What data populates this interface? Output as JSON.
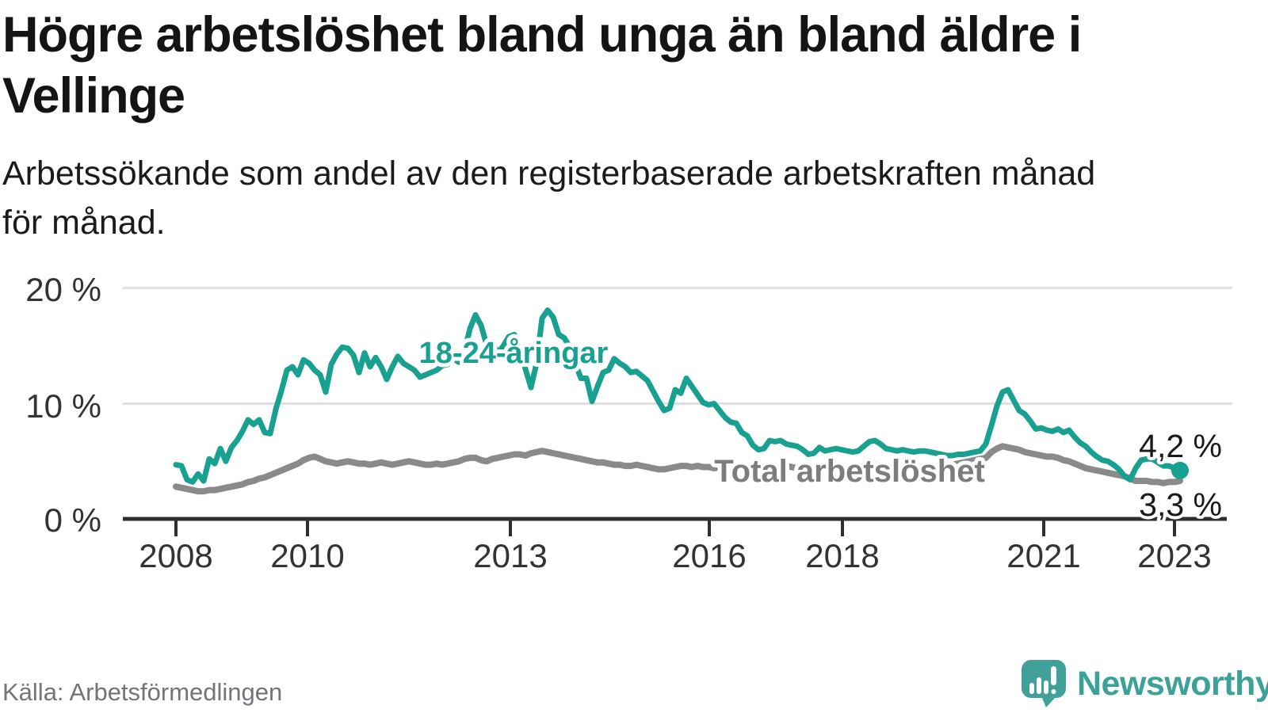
{
  "header": {
    "title_line1": "Högre arbetslöshet bland unga än bland äldre i",
    "title_line2": "Vellinge",
    "subtitle_line1": "Arbetssökande som andel av den registerbaserade arbetskraften månad",
    "subtitle_line2": "för månad."
  },
  "footer": {
    "source": "Källa: Arbetsförmedlingen",
    "brand": "Newsworthy"
  },
  "colors": {
    "accent_teal": "#18a091",
    "line_gray": "#8a8a8a",
    "label_gray": "#7d7d7d",
    "axis": "#2f2f2f",
    "gridline": "#e0e0e0",
    "logo_teal": "#41a098"
  },
  "chart_data": {
    "type": "line",
    "title": "Högre arbetslöshet bland unga än bland äldre i Vellinge",
    "subtitle": "Arbetssökande som andel av den registerbaserade arbetskraften månad för månad.",
    "unit": "%",
    "x_start": "2008-01",
    "x_end": "2023-02",
    "x_interval": "monthly",
    "xlabel": "",
    "ylabel": "",
    "ylim": [
      0,
      22
    ],
    "grid": "horizontal",
    "legend_position": "inline-labels",
    "x_tick_labels": [
      "2008",
      "2010",
      "2013",
      "2016",
      "2018",
      "2021",
      "2023"
    ],
    "y_tick_labels": [
      "0 %",
      "10 %",
      "20 %"
    ],
    "y_tick_values": [
      0,
      10,
      20
    ],
    "series": [
      {
        "name": "18-24-åringar",
        "color": "#18a091",
        "end_label": "4,2 %",
        "end_value": 4.2,
        "values": [
          4.7,
          4.6,
          3.4,
          3.2,
          3.9,
          3.3,
          5.2,
          4.8,
          6.1,
          5.0,
          6.2,
          6.8,
          7.6,
          8.6,
          8.2,
          8.6,
          7.5,
          7.4,
          9.5,
          11.1,
          12.9,
          13.2,
          12.5,
          13.8,
          13.5,
          12.9,
          12.5,
          11.0,
          13.4,
          14.3,
          14.9,
          14.8,
          14.2,
          12.7,
          14.4,
          13.2,
          14.0,
          13.2,
          12.1,
          13.2,
          14.1,
          13.5,
          13.2,
          12.9,
          12.3,
          12.5,
          12.7,
          12.9,
          13.3,
          13.4,
          13.9,
          13.6,
          14.5,
          16.5,
          17.7,
          16.8,
          15.1,
          15.3,
          14.4,
          15.0,
          15.8,
          16.0,
          14.9,
          13.0,
          11.4,
          13.5,
          17.4,
          18.1,
          17.5,
          16.0,
          15.7,
          14.9,
          13.5,
          12.2,
          12.2,
          10.2,
          11.5,
          12.7,
          12.9,
          13.9,
          13.5,
          13.2,
          12.7,
          12.8,
          12.4,
          12.0,
          11.1,
          10.2,
          9.4,
          9.6,
          11.2,
          10.9,
          12.2,
          11.5,
          10.8,
          10.1,
          9.9,
          10.0,
          9.4,
          8.8,
          8.4,
          8.3,
          7.5,
          7.2,
          6.4,
          6.0,
          6.1,
          6.8,
          6.7,
          6.8,
          6.5,
          6.4,
          6.3,
          6.0,
          5.6,
          5.7,
          6.2,
          5.9,
          6.0,
          6.1,
          6.0,
          5.9,
          5.8,
          5.9,
          6.3,
          6.7,
          6.8,
          6.5,
          6.1,
          6.0,
          5.9,
          6.0,
          5.9,
          5.8,
          5.9,
          5.9,
          5.8,
          5.7,
          5.6,
          5.5,
          5.5,
          5.6,
          5.6,
          5.7,
          5.8,
          5.9,
          6.5,
          8.1,
          9.8,
          11.0,
          11.2,
          10.3,
          9.4,
          9.1,
          8.5,
          7.8,
          7.9,
          7.7,
          7.6,
          7.8,
          7.5,
          7.7,
          7.1,
          6.6,
          6.3,
          5.8,
          5.4,
          5.1,
          5.0,
          4.7,
          4.3,
          3.7,
          3.4,
          4.4,
          5.1,
          5.2,
          5.2,
          4.9,
          4.6,
          4.6,
          4.4,
          4.2
        ]
      },
      {
        "name": "Total arbetslöshet",
        "color": "#8a8a8a",
        "end_label": "3,3 %",
        "end_value": 3.3,
        "values": [
          2.8,
          2.7,
          2.6,
          2.5,
          2.4,
          2.4,
          2.5,
          2.5,
          2.6,
          2.7,
          2.8,
          2.9,
          3.0,
          3.2,
          3.3,
          3.5,
          3.6,
          3.8,
          4.0,
          4.2,
          4.4,
          4.6,
          4.8,
          5.1,
          5.3,
          5.4,
          5.2,
          5.0,
          4.9,
          4.8,
          4.9,
          5.0,
          4.9,
          4.8,
          4.8,
          4.7,
          4.8,
          4.9,
          4.8,
          4.7,
          4.8,
          4.9,
          5.0,
          4.9,
          4.8,
          4.7,
          4.7,
          4.8,
          4.7,
          4.8,
          4.9,
          5.0,
          5.2,
          5.3,
          5.3,
          5.1,
          5.0,
          5.2,
          5.3,
          5.4,
          5.5,
          5.6,
          5.6,
          5.5,
          5.7,
          5.8,
          5.9,
          5.8,
          5.7,
          5.6,
          5.5,
          5.4,
          5.3,
          5.2,
          5.1,
          5.0,
          4.9,
          4.9,
          4.8,
          4.7,
          4.7,
          4.6,
          4.6,
          4.7,
          4.6,
          4.5,
          4.4,
          4.3,
          4.3,
          4.4,
          4.5,
          4.6,
          4.6,
          4.5,
          4.6,
          4.5,
          4.5,
          4.4,
          4.5,
          4.6,
          4.7,
          4.6,
          4.7,
          4.6,
          4.6,
          4.5,
          4.6,
          4.6,
          4.6,
          4.5,
          4.6,
          4.5,
          4.4,
          4.5,
          4.4,
          4.5,
          4.5,
          4.6,
          4.5,
          4.6,
          4.5,
          4.4,
          4.5,
          4.4,
          4.5,
          4.6,
          4.7,
          4.6,
          4.5,
          4.4,
          4.5,
          4.4,
          4.5,
          4.4,
          4.5,
          4.6,
          4.5,
          4.6,
          4.7,
          4.8,
          4.7,
          4.8,
          4.9,
          5.0,
          5.1,
          5.2,
          5.3,
          5.8,
          6.1,
          6.3,
          6.2,
          6.1,
          6.0,
          5.8,
          5.7,
          5.6,
          5.5,
          5.4,
          5.4,
          5.3,
          5.1,
          5.0,
          4.8,
          4.6,
          4.4,
          4.3,
          4.2,
          4.1,
          4.0,
          3.9,
          3.8,
          3.7,
          3.5,
          3.3,
          3.3,
          3.3,
          3.2,
          3.2,
          3.1,
          3.2,
          3.2,
          3.3
        ]
      }
    ]
  }
}
